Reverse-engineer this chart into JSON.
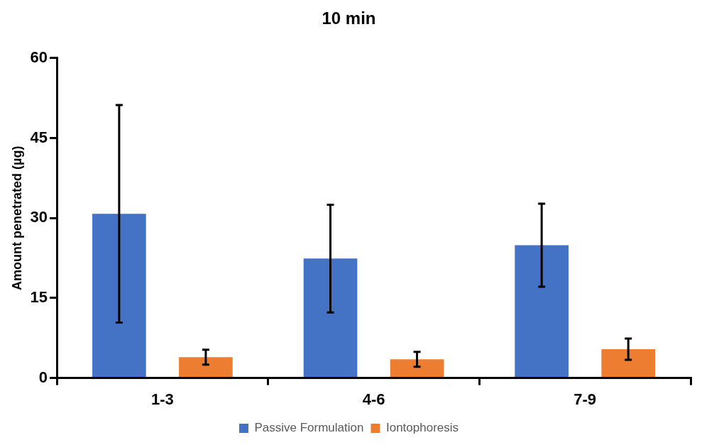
{
  "chart_data": {
    "type": "bar",
    "title": "10 min",
    "ylabel": "Amount penetrated (µg)",
    "categories": [
      "1-3",
      "4-6",
      "7-9"
    ],
    "series": [
      {
        "name": "Passive Formulation",
        "color": "#4472c4",
        "values": [
          30.8,
          22.4,
          24.9
        ],
        "errors": [
          20.4,
          10.1,
          7.8
        ]
      },
      {
        "name": "Iontophoresis",
        "color": "#ed7d31",
        "values": [
          3.9,
          3.5,
          5.4
        ],
        "errors": [
          1.4,
          1.4,
          2.0
        ]
      }
    ],
    "ylim": [
      0,
      60
    ],
    "yticks": [
      0,
      15,
      30,
      45,
      60
    ],
    "grid": false,
    "legend": "bottom"
  }
}
